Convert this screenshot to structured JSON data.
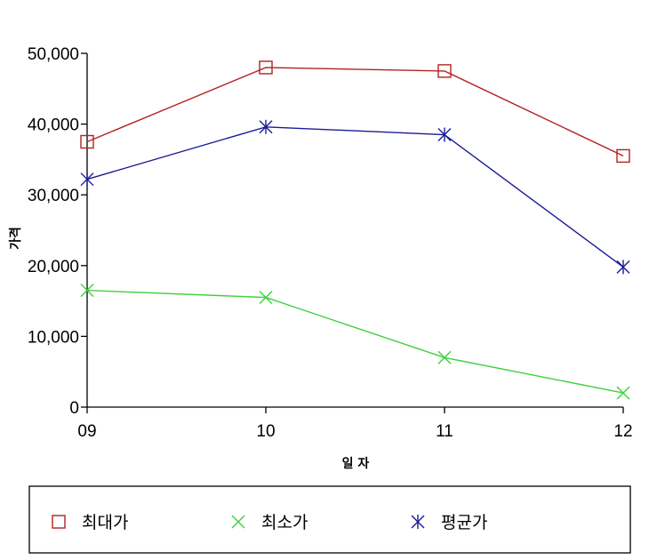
{
  "chart_data": {
    "type": "line",
    "categories": [
      "09",
      "10",
      "11",
      "12"
    ],
    "xlabel": "일 자",
    "ylabel": "가격",
    "ylim": [
      0,
      50000
    ],
    "yticks": [
      "0",
      "10,000",
      "20,000",
      "30,000",
      "40,000",
      "50,000"
    ],
    "legend_position": "bottom",
    "grid": false,
    "series": [
      {
        "name": "최대가",
        "color": "#b22222",
        "marker": "square",
        "values": [
          37500,
          48000,
          47500,
          35500
        ]
      },
      {
        "name": "최소가",
        "color": "#3fd03f",
        "marker": "x",
        "values": [
          16500,
          15500,
          7000,
          2000
        ]
      },
      {
        "name": "평균가",
        "color": "#1c1c96",
        "marker": "star",
        "values": [
          32200,
          39600,
          38500,
          19800
        ]
      }
    ]
  }
}
